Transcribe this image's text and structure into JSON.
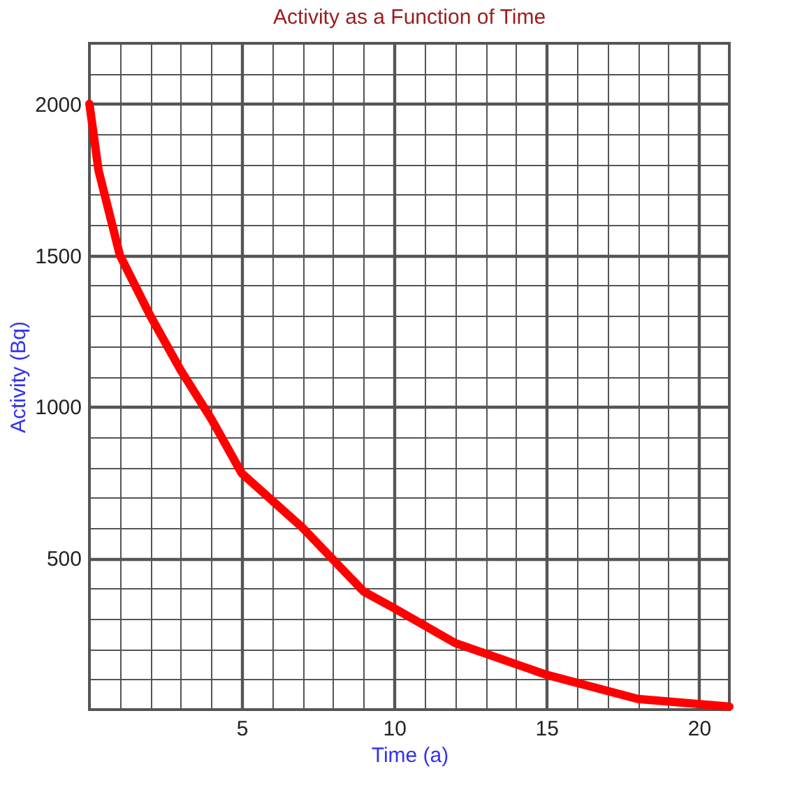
{
  "chart_data": {
    "type": "line",
    "title": "Activity as a Function of Time",
    "xlabel": "Time (a)",
    "ylabel": "Activity (Bq)",
    "x": [
      0,
      0.3,
      1,
      2,
      3,
      4,
      5,
      7,
      9,
      10,
      12,
      15,
      18,
      21
    ],
    "series": [
      {
        "color": "#ff0000",
        "values": [
          2000,
          1780,
          1500,
          1300,
          1120,
          960,
          780,
          600,
          390,
          335,
          220,
          115,
          35,
          10
        ]
      }
    ],
    "xlim": [
      0,
      21
    ],
    "ylim": [
      0,
      2200
    ],
    "xticks": [
      {
        "value": 0,
        "label": null
      },
      {
        "value": 1,
        "label": null
      },
      {
        "value": 2,
        "label": null
      },
      {
        "value": 3,
        "label": null
      },
      {
        "value": 4,
        "label": null
      },
      5,
      {
        "value": 6,
        "label": null
      },
      {
        "value": 7,
        "label": null
      },
      {
        "value": 8,
        "label": null
      },
      {
        "value": 9,
        "label": null
      },
      10,
      {
        "value": 11,
        "label": null
      },
      {
        "value": 12,
        "label": null
      },
      {
        "value": 13,
        "label": null
      },
      {
        "value": 14,
        "label": null
      },
      15,
      {
        "value": 16,
        "label": null
      },
      {
        "value": 17,
        "label": null
      },
      {
        "value": 18,
        "label": null
      },
      {
        "value": 19,
        "label": null
      },
      20,
      {
        "value": 21,
        "label": null
      }
    ],
    "yticks": [
      {
        "value": 0,
        "label": null
      },
      {
        "value": 100,
        "label": null
      },
      {
        "value": 200,
        "label": null
      },
      {
        "value": 300,
        "label": null
      },
      {
        "value": 400,
        "label": null
      },
      500,
      {
        "value": 600,
        "label": null
      },
      {
        "value": 700,
        "label": null
      },
      {
        "value": 800,
        "label": null
      },
      {
        "value": 900,
        "label": null
      },
      1000,
      {
        "value": 1100,
        "label": null
      },
      {
        "value": 1200,
        "label": null
      },
      {
        "value": 1300,
        "label": null
      },
      {
        "value": 1400,
        "label": null
      },
      1500,
      {
        "value": 1600,
        "label": null
      },
      {
        "value": 1700,
        "label": null
      },
      {
        "value": 1800,
        "label": null
      },
      {
        "value": 1900,
        "label": null
      },
      2000,
      {
        "value": 2100,
        "label": null
      },
      {
        "value": 2200,
        "label": null
      }
    ],
    "grid": true,
    "marker": "none",
    "line_style": "solid"
  }
}
